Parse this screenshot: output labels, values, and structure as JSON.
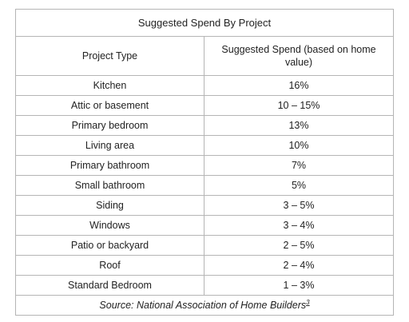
{
  "table": {
    "title": "Suggested Spend By Project",
    "headers": {
      "project_type": "Project Type",
      "suggested_spend": "Suggested Spend (based on home value)"
    },
    "rows": [
      {
        "project": "Kitchen",
        "spend": "16%"
      },
      {
        "project": "Attic or basement",
        "spend": "10 – 15%"
      },
      {
        "project": "Primary bedroom",
        "spend": "13%"
      },
      {
        "project": "Living area",
        "spend": "10%"
      },
      {
        "project": "Primary bathroom",
        "spend": "7%"
      },
      {
        "project": "Small bathroom",
        "spend": "5%"
      },
      {
        "project": "Siding",
        "spend": "3 – 5%"
      },
      {
        "project": "Windows",
        "spend": "3 – 4%"
      },
      {
        "project": "Patio or backyard",
        "spend": "2 – 5%"
      },
      {
        "project": "Roof",
        "spend": "2 – 4%"
      },
      {
        "project": "Standard Bedroom",
        "spend": "1 – 3%"
      }
    ],
    "source": "Source: National Association of Home Builders",
    "source_footnote": "3"
  }
}
